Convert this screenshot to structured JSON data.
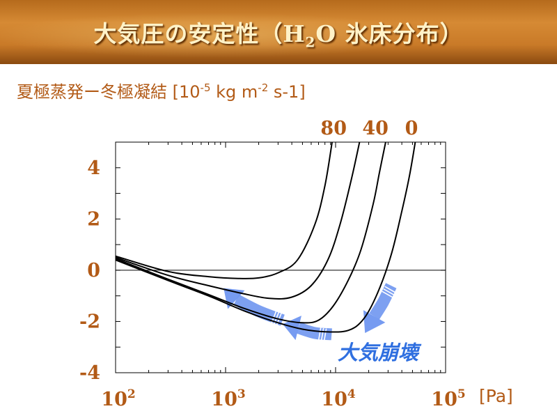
{
  "header": {
    "title_main": "大気圧の安定性（H",
    "title_sub": "2",
    "title_end": "O 氷床分布）"
  },
  "subtitle": {
    "text": "夏極蒸発ー冬極凝結 [10",
    "exp1": "-5",
    "mid": " kg m",
    "exp2": "-2",
    "end": " s-1]"
  },
  "colors": {
    "accent": "#b25a16",
    "arrow": "#6f96f0",
    "curve": "#000000",
    "banner": "#c97a28"
  },
  "chart_data": {
    "type": "line",
    "xscale": "log",
    "xlim": [
      100,
      100000
    ],
    "ylim": [
      -4,
      5
    ],
    "xticks": [
      {
        "base": "10",
        "exp": "2",
        "value": 100
      },
      {
        "base": "10",
        "exp": "3",
        "value": 1000
      },
      {
        "base": "10",
        "exp": "4",
        "value": 10000
      },
      {
        "base": "10",
        "exp": "5",
        "value": 100000
      }
    ],
    "yticks": [
      4,
      2,
      0,
      -2,
      -4
    ],
    "x_unit": "[Pa]",
    "top_labels": [
      {
        "text": "80",
        "x": 9600
      },
      {
        "text": "40",
        "x": 23000
      },
      {
        "text": "0",
        "x": 49000
      }
    ],
    "series": [
      {
        "points": [
          [
            100,
            0.55
          ],
          [
            300,
            -0.05
          ],
          [
            700,
            -0.25
          ],
          [
            1300,
            -0.32
          ],
          [
            2000,
            -0.3
          ],
          [
            3000,
            -0.1
          ],
          [
            4500,
            0.4
          ],
          [
            6500,
            1.8
          ],
          [
            8000,
            3.3
          ],
          [
            9300,
            5.0
          ]
        ]
      },
      {
        "points": [
          [
            100,
            0.5
          ],
          [
            300,
            -0.2
          ],
          [
            700,
            -0.6
          ],
          [
            1400,
            -0.9
          ],
          [
            2500,
            -1.1
          ],
          [
            4000,
            -1.05
          ],
          [
            6000,
            -0.6
          ],
          [
            8500,
            0.4
          ],
          [
            11000,
            1.8
          ],
          [
            14000,
            3.6
          ],
          [
            16500,
            5.0
          ]
        ]
      },
      {
        "points": [
          [
            100,
            0.45
          ],
          [
            300,
            -0.35
          ],
          [
            700,
            -0.95
          ],
          [
            1500,
            -1.5
          ],
          [
            3000,
            -1.9
          ],
          [
            5000,
            -2.05
          ],
          [
            7000,
            -1.95
          ],
          [
            9500,
            -1.4
          ],
          [
            13000,
            -0.4
          ],
          [
            17000,
            0.8
          ],
          [
            22000,
            2.6
          ],
          [
            25000,
            3.8
          ],
          [
            28500,
            5.0
          ]
        ]
      },
      {
        "points": [
          [
            100,
            0.4
          ],
          [
            300,
            -0.4
          ],
          [
            700,
            -1.0
          ],
          [
            1500,
            -1.6
          ],
          [
            3000,
            -2.05
          ],
          [
            5000,
            -2.3
          ],
          [
            8000,
            -2.4
          ],
          [
            13000,
            -2.35
          ],
          [
            18000,
            -1.9
          ],
          [
            24000,
            -0.9
          ],
          [
            32000,
            0.6
          ],
          [
            40000,
            2.3
          ],
          [
            47000,
            3.7
          ],
          [
            53000,
            5.0
          ]
        ]
      }
    ],
    "zero_line": 0,
    "annotation": "大気崩壊"
  }
}
